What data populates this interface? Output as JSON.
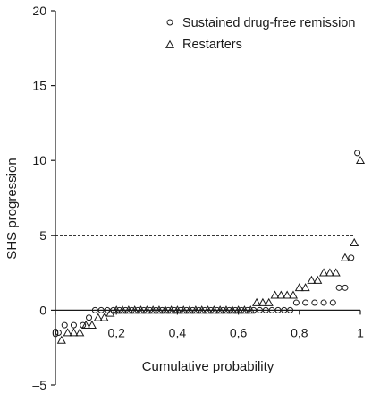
{
  "chart_data": {
    "type": "scatter",
    "xlabel": "Cumulative probability",
    "ylabel": "SHS progression",
    "xlim": [
      0,
      1
    ],
    "ylim": [
      -5,
      20
    ],
    "x_ticks": [
      {
        "value": 0,
        "label": "0"
      },
      {
        "value": 0.2,
        "label": "0,2"
      },
      {
        "value": 0.4,
        "label": "0,4"
      },
      {
        "value": 0.6,
        "label": "0,6"
      },
      {
        "value": 0.8,
        "label": "0,8"
      },
      {
        "value": 1,
        "label": "1"
      }
    ],
    "y_ticks": [
      {
        "value": -5,
        "label": "–5"
      },
      {
        "value": 0,
        "label": "0"
      },
      {
        "value": 5,
        "label": "5"
      },
      {
        "value": 10,
        "label": "10"
      },
      {
        "value": 15,
        "label": "15"
      },
      {
        "value": 20,
        "label": "20"
      }
    ],
    "reference_line": {
      "y": 5,
      "x_range": [
        0,
        0.98
      ],
      "style": "dashed"
    },
    "grid": false,
    "legend_position": "top-right",
    "series": [
      {
        "name": "Sustained drug-free remission",
        "marker": "circle",
        "points": [
          [
            0.01,
            -1.5
          ],
          [
            0.03,
            -1.0
          ],
          [
            0.06,
            -1.0
          ],
          [
            0.09,
            -1.0
          ],
          [
            0.11,
            -0.5
          ],
          [
            0.13,
            0
          ],
          [
            0.15,
            0
          ],
          [
            0.17,
            0
          ],
          [
            0.19,
            0
          ],
          [
            0.21,
            0
          ],
          [
            0.23,
            0
          ],
          [
            0.25,
            0
          ],
          [
            0.27,
            0
          ],
          [
            0.29,
            0
          ],
          [
            0.31,
            0
          ],
          [
            0.33,
            0
          ],
          [
            0.35,
            0
          ],
          [
            0.37,
            0
          ],
          [
            0.39,
            0
          ],
          [
            0.41,
            0
          ],
          [
            0.43,
            0
          ],
          [
            0.45,
            0
          ],
          [
            0.47,
            0
          ],
          [
            0.49,
            0
          ],
          [
            0.51,
            0
          ],
          [
            0.53,
            0
          ],
          [
            0.55,
            0
          ],
          [
            0.57,
            0
          ],
          [
            0.59,
            0
          ],
          [
            0.61,
            0
          ],
          [
            0.63,
            0
          ],
          [
            0.65,
            0
          ],
          [
            0.67,
            0
          ],
          [
            0.69,
            0
          ],
          [
            0.71,
            0
          ],
          [
            0.73,
            0
          ],
          [
            0.75,
            0
          ],
          [
            0.77,
            0
          ],
          [
            0.79,
            0.5
          ],
          [
            0.82,
            0.5
          ],
          [
            0.85,
            0.5
          ],
          [
            0.88,
            0.5
          ],
          [
            0.91,
            0.5
          ],
          [
            0.93,
            1.5
          ],
          [
            0.95,
            1.5
          ],
          [
            0.97,
            3.5
          ],
          [
            0.99,
            10.5
          ]
        ]
      },
      {
        "name": "Restarters",
        "marker": "triangle",
        "points": [
          [
            0.02,
            -2.0
          ],
          [
            0.04,
            -1.5
          ],
          [
            0.06,
            -1.5
          ],
          [
            0.08,
            -1.5
          ],
          [
            0.1,
            -1.0
          ],
          [
            0.12,
            -1.0
          ],
          [
            0.14,
            -0.5
          ],
          [
            0.16,
            -0.5
          ],
          [
            0.18,
            -0.2
          ],
          [
            0.2,
            0
          ],
          [
            0.22,
            0
          ],
          [
            0.24,
            0
          ],
          [
            0.26,
            0
          ],
          [
            0.28,
            0
          ],
          [
            0.3,
            0
          ],
          [
            0.32,
            0
          ],
          [
            0.34,
            0
          ],
          [
            0.36,
            0
          ],
          [
            0.38,
            0
          ],
          [
            0.4,
            0
          ],
          [
            0.42,
            0
          ],
          [
            0.44,
            0
          ],
          [
            0.46,
            0
          ],
          [
            0.48,
            0
          ],
          [
            0.5,
            0
          ],
          [
            0.52,
            0
          ],
          [
            0.54,
            0
          ],
          [
            0.56,
            0
          ],
          [
            0.58,
            0
          ],
          [
            0.6,
            0
          ],
          [
            0.62,
            0
          ],
          [
            0.64,
            0
          ],
          [
            0.66,
            0.5
          ],
          [
            0.68,
            0.5
          ],
          [
            0.7,
            0.5
          ],
          [
            0.72,
            1.0
          ],
          [
            0.74,
            1.0
          ],
          [
            0.76,
            1.0
          ],
          [
            0.78,
            1.0
          ],
          [
            0.8,
            1.5
          ],
          [
            0.82,
            1.5
          ],
          [
            0.84,
            2.0
          ],
          [
            0.86,
            2.0
          ],
          [
            0.88,
            2.5
          ],
          [
            0.9,
            2.5
          ],
          [
            0.92,
            2.5
          ],
          [
            0.95,
            3.5
          ],
          [
            0.98,
            4.5
          ],
          [
            1.0,
            10.0
          ]
        ]
      }
    ]
  }
}
